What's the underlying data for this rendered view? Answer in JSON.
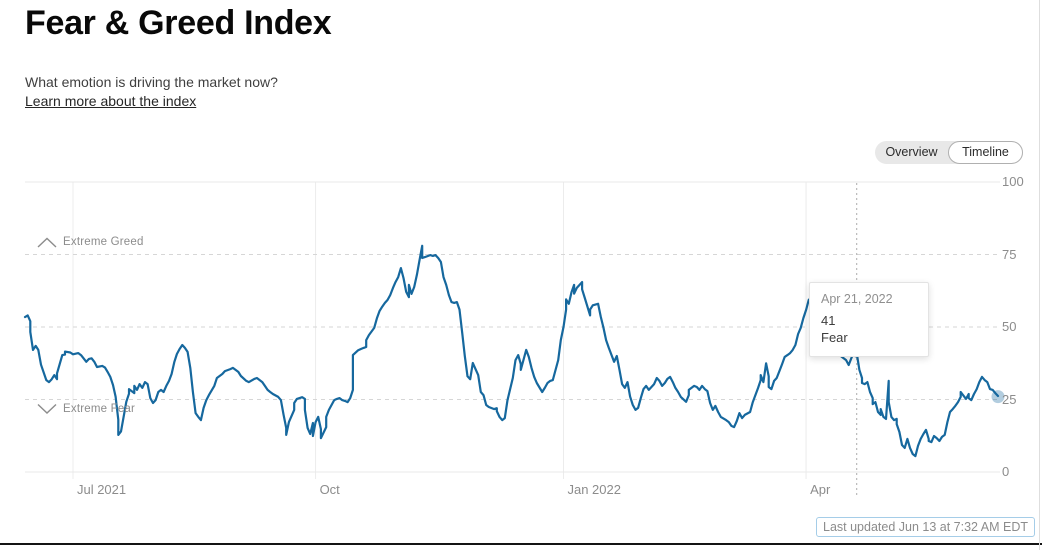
{
  "page": {
    "title": "Fear & Greed Index",
    "subtitle": "What emotion is driving the market now?",
    "learn_more": "Learn more about the index",
    "last_updated": "Last updated Jun 13 at 7:32 AM EDT"
  },
  "view_toggle": {
    "options": [
      "Overview",
      "Timeline"
    ],
    "selected": "Timeline"
  },
  "chart_data": {
    "type": "line",
    "title": "Fear & Greed Index timeline",
    "line_color": "#16689e",
    "current_point_halo_color": "rgba(22,104,158,0.33)",
    "x_axis": {
      "start_date": "2021-06-13",
      "end_date": "2022-06-13",
      "total_days": 365,
      "ticks": [
        {
          "label": "Jul 2021",
          "day": 18
        },
        {
          "label": "Oct",
          "day": 109
        },
        {
          "label": "Jan 2022",
          "day": 202
        },
        {
          "label": "Apr",
          "day": 293
        }
      ]
    },
    "y_axis": {
      "min": 0,
      "max": 100,
      "ticks": [
        100,
        75,
        50,
        25,
        0
      ]
    },
    "zones": [
      {
        "label": "Extreme Greed",
        "icon": "chevron-up"
      },
      {
        "label": "Extreme Fear",
        "icon": "chevron-down"
      }
    ],
    "tooltip": {
      "date": "Apr 21, 2022",
      "value": 41,
      "label": "Fear",
      "day": 312
    },
    "current_point": {
      "day": 365,
      "value": 26
    },
    "points": [
      [
        0,
        53.4
      ],
      [
        1,
        54
      ],
      [
        2,
        52
      ],
      [
        2,
        48.3
      ],
      [
        3,
        42.1
      ],
      [
        4,
        43.5
      ],
      [
        5,
        42.1
      ],
      [
        6,
        37
      ],
      [
        8,
        31.7
      ],
      [
        9,
        31
      ],
      [
        10,
        32
      ],
      [
        11,
        33.4
      ],
      [
        12,
        32
      ],
      [
        12,
        34
      ],
      [
        14,
        40.3
      ],
      [
        15,
        40.5
      ],
      [
        15,
        41.5
      ],
      [
        17,
        41.2
      ],
      [
        18,
        40.6
      ],
      [
        20,
        41
      ],
      [
        21,
        40.3
      ],
      [
        23,
        38
      ],
      [
        24,
        39
      ],
      [
        25,
        39.2
      ],
      [
        26,
        38
      ],
      [
        27,
        36.2
      ],
      [
        29,
        36.6
      ],
      [
        30,
        36
      ],
      [
        31,
        34.5
      ],
      [
        32,
        32.8
      ],
      [
        33,
        30
      ],
      [
        34,
        26
      ],
      [
        35,
        18
      ],
      [
        35,
        12.8
      ],
      [
        36,
        14
      ],
      [
        37,
        19
      ],
      [
        38,
        24.2
      ],
      [
        39,
        27
      ],
      [
        39,
        28.6
      ],
      [
        41,
        27.2
      ],
      [
        41,
        29.7
      ],
      [
        42,
        28.3
      ],
      [
        43,
        30.3
      ],
      [
        44,
        29
      ],
      [
        45,
        31
      ],
      [
        46,
        30.3
      ],
      [
        47,
        25.5
      ],
      [
        48,
        23.8
      ],
      [
        49,
        24.8
      ],
      [
        50,
        27.6
      ],
      [
        51,
        28.3
      ],
      [
        52,
        27.6
      ],
      [
        53,
        29.7
      ],
      [
        54,
        31.4
      ],
      [
        55,
        33.8
      ],
      [
        56,
        37.9
      ],
      [
        57,
        40.7
      ],
      [
        58,
        42.4
      ],
      [
        59,
        43.8
      ],
      [
        60,
        42.8
      ],
      [
        61,
        41.4
      ],
      [
        62,
        35.9
      ],
      [
        63,
        27.6
      ],
      [
        64,
        20.3
      ],
      [
        65,
        19
      ],
      [
        66,
        17.9
      ],
      [
        67,
        22.1
      ],
      [
        68,
        24.8
      ],
      [
        69,
        26.5
      ],
      [
        71,
        29.7
      ],
      [
        72,
        32.4
      ],
      [
        74,
        33.8
      ],
      [
        75,
        34.8
      ],
      [
        77,
        35.5
      ],
      [
        78,
        35.9
      ],
      [
        80,
        34.5
      ],
      [
        81,
        33.1
      ],
      [
        83,
        31.4
      ],
      [
        84,
        31
      ],
      [
        86,
        32.1
      ],
      [
        87,
        32.4
      ],
      [
        89,
        31
      ],
      [
        90,
        29.7
      ],
      [
        91,
        28.3
      ],
      [
        92,
        27.6
      ],
      [
        93,
        26.9
      ],
      [
        95,
        25.9
      ],
      [
        96,
        24.8
      ],
      [
        97,
        19.7
      ],
      [
        98,
        15.2
      ],
      [
        98,
        12.8
      ],
      [
        99,
        17.2
      ],
      [
        101,
        21.4
      ],
      [
        101,
        23.8
      ],
      [
        102,
        25.2
      ],
      [
        104,
        25.8
      ],
      [
        105,
        25.2
      ],
      [
        105,
        21.4
      ],
      [
        106,
        15.2
      ],
      [
        107,
        13.1
      ],
      [
        108,
        16.9
      ],
      [
        108,
        12.4
      ],
      [
        109,
        17.2
      ],
      [
        110,
        19
      ],
      [
        111,
        14.8
      ],
      [
        111,
        11.7
      ],
      [
        113,
        15.5
      ],
      [
        113,
        19
      ],
      [
        114,
        21.4
      ],
      [
        116,
        24.8
      ],
      [
        117,
        25.2
      ],
      [
        118,
        25.5
      ],
      [
        119,
        24.8
      ],
      [
        120,
        24.5
      ],
      [
        121,
        24.1
      ],
      [
        122,
        25.5
      ],
      [
        123,
        28.3
      ],
      [
        123,
        40.3
      ],
      [
        125,
        42
      ],
      [
        126,
        42.4
      ],
      [
        127,
        42.8
      ],
      [
        128,
        43.1
      ],
      [
        128,
        45.5
      ],
      [
        129,
        47.2
      ],
      [
        131,
        49.7
      ],
      [
        132,
        53
      ],
      [
        133,
        55.5
      ],
      [
        134,
        57
      ],
      [
        135,
        58.3
      ],
      [
        136,
        59.3
      ],
      [
        137,
        61
      ],
      [
        138,
        63.4
      ],
      [
        139,
        65.5
      ],
      [
        140,
        67.2
      ],
      [
        141,
        70.3
      ],
      [
        142,
        66.9
      ],
      [
        143,
        62.1
      ],
      [
        144,
        60.3
      ],
      [
        144,
        64.5
      ],
      [
        145,
        61.4
      ],
      [
        146,
        63.8
      ],
      [
        147,
        68
      ],
      [
        148,
        73
      ],
      [
        149,
        78
      ],
      [
        149,
        73.8
      ],
      [
        150,
        74.1
      ],
      [
        152,
        74.8
      ],
      [
        153,
        74.5
      ],
      [
        154,
        74.8
      ],
      [
        155,
        73.8
      ],
      [
        156,
        72.4
      ],
      [
        157,
        67.2
      ],
      [
        158,
        64.5
      ],
      [
        159,
        61
      ],
      [
        160,
        58.6
      ],
      [
        161,
        58.3
      ],
      [
        162,
        58.6
      ],
      [
        163,
        56
      ],
      [
        164,
        48
      ],
      [
        165,
        40
      ],
      [
        166,
        33
      ],
      [
        167,
        32
      ],
      [
        168,
        37.6
      ],
      [
        170,
        33.4
      ],
      [
        171,
        27.6
      ],
      [
        172,
        26.5
      ],
      [
        173,
        23.1
      ],
      [
        174,
        22.4
      ],
      [
        176,
        21.7
      ],
      [
        177,
        22
      ],
      [
        177,
        21
      ],
      [
        178,
        19
      ],
      [
        179,
        17.9
      ],
      [
        180,
        18.6
      ],
      [
        181,
        24.8
      ],
      [
        183,
        32.4
      ],
      [
        184,
        38.6
      ],
      [
        185,
        40.3
      ],
      [
        186,
        37.2
      ],
      [
        186,
        35.2
      ],
      [
        188,
        42.1
      ],
      [
        189,
        39.7
      ],
      [
        190,
        35.9
      ],
      [
        191,
        32.8
      ],
      [
        192,
        30.7
      ],
      [
        194,
        27.6
      ],
      [
        195,
        29
      ],
      [
        196,
        30.7
      ],
      [
        197,
        31.4
      ],
      [
        198,
        31.7
      ],
      [
        200,
        38.6
      ],
      [
        201,
        45.5
      ],
      [
        202,
        50
      ],
      [
        203,
        56
      ],
      [
        203,
        59.5
      ],
      [
        204,
        58
      ],
      [
        205,
        62
      ],
      [
        206,
        64.5
      ],
      [
        206,
        61.5
      ],
      [
        207,
        63.5
      ],
      [
        209,
        65.5
      ],
      [
        209,
        63
      ],
      [
        210,
        60
      ],
      [
        212,
        54
      ],
      [
        212,
        56
      ],
      [
        213,
        57.5
      ],
      [
        215,
        58
      ],
      [
        216,
        53.5
      ],
      [
        217,
        49.7
      ],
      [
        218,
        45.5
      ],
      [
        219,
        42.8
      ],
      [
        221,
        38
      ],
      [
        222,
        40
      ],
      [
        223,
        35.2
      ],
      [
        224,
        30.3
      ],
      [
        225,
        29
      ],
      [
        226,
        31
      ],
      [
        227,
        26
      ],
      [
        228,
        23.1
      ],
      [
        229,
        21.4
      ],
      [
        230,
        22.1
      ],
      [
        231,
        25.5
      ],
      [
        232,
        28.6
      ],
      [
        233,
        29.7
      ],
      [
        234,
        28.3
      ],
      [
        236,
        30.3
      ],
      [
        237,
        32.4
      ],
      [
        238,
        31.4
      ],
      [
        239,
        29.7
      ],
      [
        240,
        30.7
      ],
      [
        241,
        32.1
      ],
      [
        242,
        32.8
      ],
      [
        243,
        31
      ],
      [
        244,
        29
      ],
      [
        245,
        27.6
      ],
      [
        246,
        25.9
      ],
      [
        248,
        24.2
      ],
      [
        249,
        26.5
      ],
      [
        249,
        28.3
      ],
      [
        251,
        29.7
      ],
      [
        252,
        29.3
      ],
      [
        253,
        28.3
      ],
      [
        254,
        29.7
      ],
      [
        255,
        28.6
      ],
      [
        256,
        27.9
      ],
      [
        257,
        23.8
      ],
      [
        258,
        21.4
      ],
      [
        259,
        22.8
      ],
      [
        260,
        20.7
      ],
      [
        261,
        19
      ],
      [
        263,
        17.9
      ],
      [
        264,
        17.2
      ],
      [
        265,
        15.9
      ],
      [
        266,
        15.5
      ],
      [
        267,
        17.6
      ],
      [
        268,
        20.3
      ],
      [
        269,
        18.6
      ],
      [
        270,
        19.7
      ],
      [
        272,
        20.7
      ],
      [
        273,
        24.1
      ],
      [
        274,
        26.5
      ],
      [
        275,
        29
      ],
      [
        276,
        31.7
      ],
      [
        276,
        33.4
      ],
      [
        277,
        31
      ],
      [
        278,
        37.5
      ],
      [
        279,
        33
      ],
      [
        279,
        29.3
      ],
      [
        280,
        28.6
      ],
      [
        281,
        31.4
      ],
      [
        282,
        32.4
      ],
      [
        283,
        34.8
      ],
      [
        284,
        37.2
      ],
      [
        285,
        39.7
      ],
      [
        286,
        40.3
      ],
      [
        287,
        41
      ],
      [
        288,
        42.1
      ],
      [
        289,
        43.8
      ],
      [
        290,
        47.6
      ],
      [
        291,
        49.7
      ],
      [
        292,
        53.1
      ],
      [
        293,
        55.9
      ],
      [
        294,
        59.3
      ],
      [
        296,
        61
      ],
      [
        297,
        55
      ],
      [
        297,
        48
      ],
      [
        298,
        44.8
      ],
      [
        299,
        44.5
      ],
      [
        300,
        44.1
      ],
      [
        302,
        43.4
      ],
      [
        303,
        42.4
      ],
      [
        304,
        41.4
      ],
      [
        305,
        40.7
      ],
      [
        306,
        40
      ],
      [
        308,
        38.6
      ],
      [
        309,
        36.9
      ],
      [
        310,
        39.3
      ],
      [
        311,
        41.4
      ],
      [
        312,
        41
      ],
      [
        313,
        35.2
      ],
      [
        314,
        32.4
      ],
      [
        314,
        30.7
      ],
      [
        315,
        30.3
      ],
      [
        316,
        31
      ],
      [
        317,
        27.6
      ],
      [
        318,
        25.5
      ],
      [
        318,
        23.4
      ],
      [
        319,
        24.1
      ],
      [
        320,
        20.7
      ],
      [
        321,
        19.7
      ],
      [
        321,
        21.7
      ],
      [
        322,
        19
      ],
      [
        323,
        18.3
      ],
      [
        324,
        31.4
      ],
      [
        324,
        24.1
      ],
      [
        325,
        19
      ],
      [
        326,
        17.9
      ],
      [
        327,
        18.3
      ],
      [
        327,
        16.5
      ],
      [
        328,
        13.8
      ],
      [
        329,
        9.3
      ],
      [
        330,
        8.3
      ],
      [
        331,
        11.4
      ],
      [
        332,
        8.3
      ],
      [
        333,
        6.2
      ],
      [
        334,
        5.5
      ],
      [
        335,
        9
      ],
      [
        336,
        11.4
      ],
      [
        337,
        13.1
      ],
      [
        338,
        14.5
      ],
      [
        339,
        11.4
      ],
      [
        339,
        10.7
      ],
      [
        340,
        10.3
      ],
      [
        341,
        12.4
      ],
      [
        342,
        11.7
      ],
      [
        343,
        10.7
      ],
      [
        344,
        12.1
      ],
      [
        345,
        12.8
      ],
      [
        346,
        17.2
      ],
      [
        347,
        20.7
      ],
      [
        348,
        21.7
      ],
      [
        349,
        22.8
      ],
      [
        350,
        24.1
      ],
      [
        351,
        25.9
      ],
      [
        351,
        27.6
      ],
      [
        353,
        25.2
      ],
      [
        354,
        26.9
      ],
      [
        354,
        25.5
      ],
      [
        355,
        24.8
      ],
      [
        356,
        26.9
      ],
      [
        357,
        28.6
      ],
      [
        358,
        31
      ],
      [
        359,
        32.8
      ],
      [
        360,
        31.7
      ],
      [
        361,
        31
      ],
      [
        362,
        28.6
      ],
      [
        363,
        28.3
      ],
      [
        364,
        27.2
      ],
      [
        365,
        26.2
      ]
    ]
  }
}
